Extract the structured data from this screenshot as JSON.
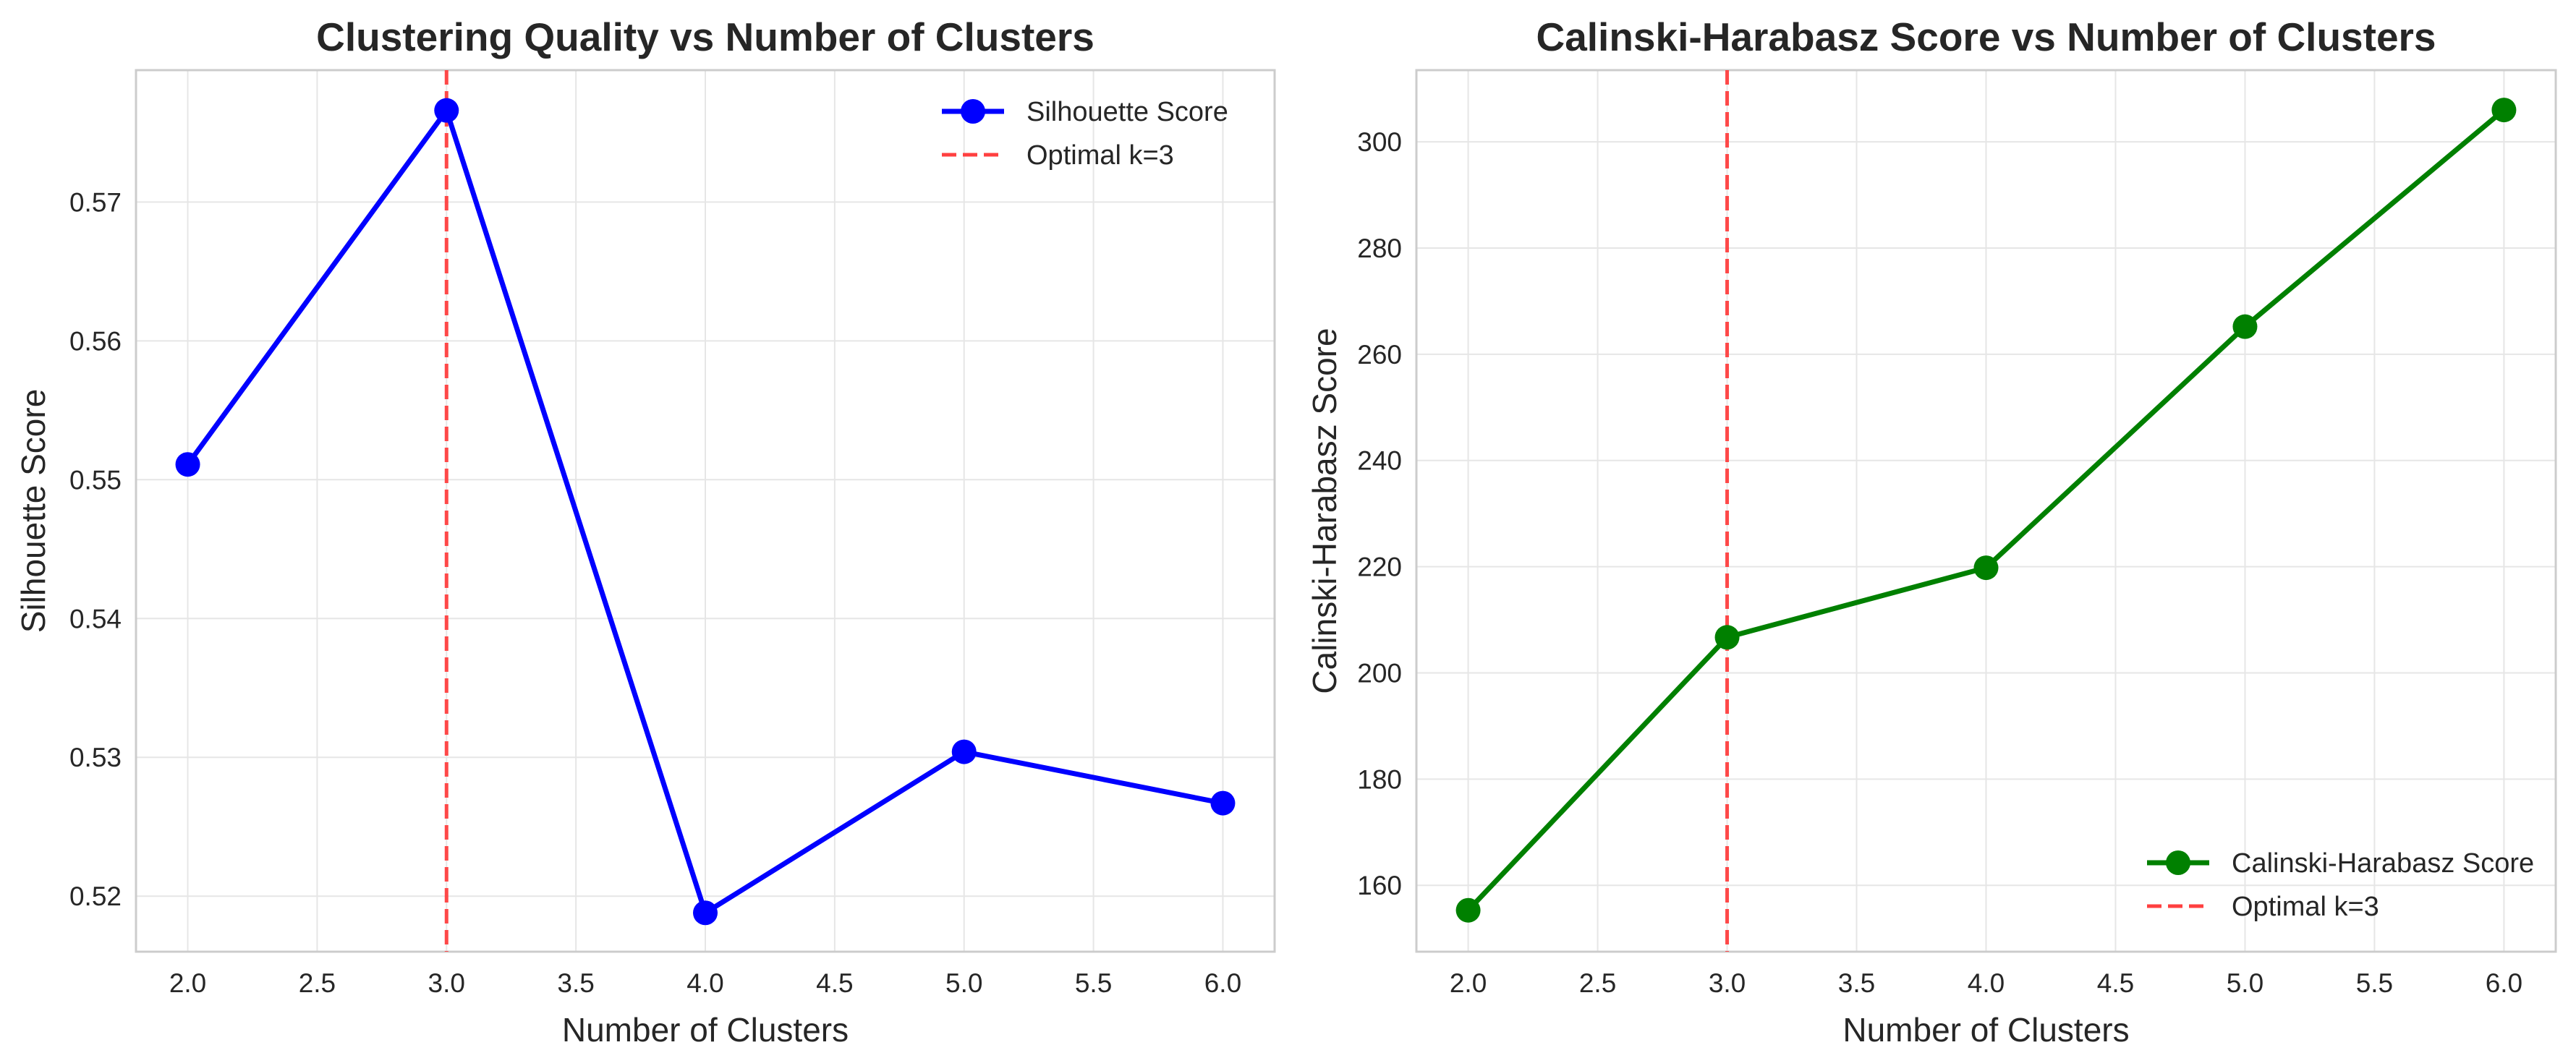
{
  "chart_data": [
    {
      "type": "line",
      "title": "Clustering Quality vs Number of Clusters",
      "xlabel": "Number of Clusters",
      "ylabel": "Silhouette Score",
      "xlim": [
        1.8,
        6.2
      ],
      "ylim": [
        0.516,
        0.5795
      ],
      "xticks": [
        2.0,
        2.5,
        3.0,
        3.5,
        4.0,
        4.5,
        5.0,
        5.5,
        6.0
      ],
      "xtick_labels": [
        "2.0",
        "2.5",
        "3.0",
        "3.5",
        "4.0",
        "4.5",
        "5.0",
        "5.5",
        "6.0"
      ],
      "yticks": [
        0.52,
        0.53,
        0.54,
        0.55,
        0.56,
        0.57
      ],
      "ytick_labels": [
        "0.52",
        "0.53",
        "0.54",
        "0.55",
        "0.56",
        "0.57"
      ],
      "grid": true,
      "legend_position": "top-right",
      "series": [
        {
          "name": "Silhouette Score",
          "color": "#0000ff",
          "marker": "circle",
          "x": [
            2,
            3,
            4,
            5,
            6
          ],
          "y": [
            0.5511,
            0.5766,
            0.5188,
            0.5304,
            0.5267
          ]
        }
      ],
      "vline": {
        "x": 3,
        "name": "Optimal k=3",
        "color": "#ff4040",
        "style": "dashed"
      }
    },
    {
      "type": "line",
      "title": "Calinski-Harabasz Score vs Number of Clusters",
      "xlabel": "Number of Clusters",
      "ylabel": "Calinski-Harabasz Score",
      "xlim": [
        1.8,
        6.2
      ],
      "ylim": [
        147.5,
        313.5
      ],
      "xticks": [
        2.0,
        2.5,
        3.0,
        3.5,
        4.0,
        4.5,
        5.0,
        5.5,
        6.0
      ],
      "xtick_labels": [
        "2.0",
        "2.5",
        "3.0",
        "3.5",
        "4.0",
        "4.5",
        "5.0",
        "5.5",
        "6.0"
      ],
      "yticks": [
        160,
        180,
        200,
        220,
        240,
        260,
        280,
        300
      ],
      "ytick_labels": [
        "160",
        "180",
        "200",
        "220",
        "240",
        "260",
        "280",
        "300"
      ],
      "grid": true,
      "legend_position": "bottom-right",
      "series": [
        {
          "name": "Calinski-Harabasz Score",
          "color": "#008000",
          "marker": "circle",
          "x": [
            2,
            3,
            4,
            5,
            6
          ],
          "y": [
            155.3,
            206.7,
            219.8,
            265.2,
            306.0
          ]
        }
      ],
      "vline": {
        "x": 3,
        "name": "Optimal k=3",
        "color": "#ff4040",
        "style": "dashed"
      }
    }
  ]
}
